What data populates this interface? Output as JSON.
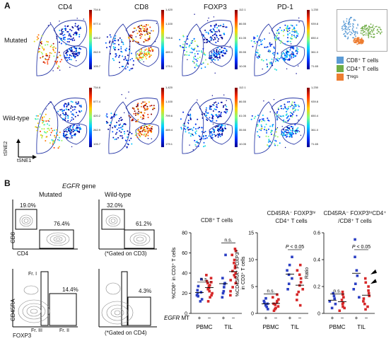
{
  "panelA": {
    "letter": "A",
    "markers": [
      "CD4",
      "CD8",
      "FOXP3",
      "PD-1"
    ],
    "rows": [
      "Mutated",
      "Wild-type"
    ],
    "colorbars": [
      {
        "ticks": [
          "734.6",
          "577.4",
          "420.2",
          "262.9",
          "105.7"
        ]
      },
      {
        "ticks": [
          "1,420",
          "1,100",
          "799.6",
          "489.4",
          "179.1"
        ]
      },
      {
        "ticks": [
          "112.1",
          "86.55",
          "61.05",
          "35.55",
          "10.05"
        ]
      },
      {
        "ticks": [
          "1,230",
          "939.8",
          "650.4",
          "361.0",
          "71.65"
        ]
      }
    ],
    "legend": [
      {
        "label": "CD8⁺ T cells",
        "color": "#5b9bd5"
      },
      {
        "label": "CD4⁺ T cells",
        "color": "#70ad47"
      },
      {
        "label": "T",
        "sub": "regs",
        "color": "#ed7d31"
      }
    ],
    "axis_y": "tSNE2",
    "axis_x": "tSNE1"
  },
  "panelB": {
    "letter": "B",
    "gene_title": "EGFR",
    "gene_suffix": " gene",
    "col_mut": "Mutated",
    "col_wt": "Wild-type",
    "flow_top": {
      "y_axis": "CD8",
      "x_axis": "CD4",
      "mut_cd8": "19.0%",
      "mut_cd4": "76.4%",
      "wt_cd8": "32.0%",
      "wt_cd4": "61.2%",
      "gate_note": "(*Gated on CD3)"
    },
    "flow_bottom": {
      "y_axis": "CD45RA",
      "x_axis": "FOXP3",
      "fr1": "Fr. I",
      "fr2": "Fr. II",
      "fr3": "Fr. III",
      "mut_pct": "14.4%",
      "wt_pct": "4.3%",
      "gate_note": "(*Gated on CD4)"
    },
    "egfr_label": "EGFR",
    "mt_label": " MT",
    "groups": [
      "PBMC",
      "TIL"
    ],
    "plus": "+",
    "minus": "−",
    "ns": "n.s.",
    "p_text": "P < 0.05"
  },
  "chart_data": [
    {
      "type": "scatter",
      "title": "CD8⁺ T cells",
      "ylabel": "%CD8⁺ in CD3⁺ T cells",
      "ylim": [
        0,
        80
      ],
      "yticks": [
        "0",
        "20",
        "40",
        "60",
        "80"
      ],
      "categories": [
        "PBMC +",
        "PBMC −",
        "TIL +",
        "TIL −"
      ],
      "series": [
        {
          "values": [
            [
              12,
              14,
              17,
              18,
              20,
              21,
              23,
              27,
              34
            ],
            [
              12,
              16,
              18,
              20,
              22,
              24,
              25,
              27,
              28,
              30,
              31,
              32,
              35,
              38
            ],
            [
              16,
              20,
              22,
              26,
              29,
              30,
              35,
              58
            ],
            [
              18,
              22,
              26,
              30,
              33,
              36,
              38,
              40,
              42,
              45,
              47,
              50,
              53,
              58,
              62,
              64
            ]
          ]
        }
      ],
      "annotations": [
        "n.s.",
        "n.s."
      ]
    },
    {
      "type": "scatter",
      "title": "CD45RA⁻ FOXP3ʰⁱ CD4⁺ T cells",
      "ylabel": "%CD45RA⁻ FOXP3ʰⁱ in CD3⁺ T cells",
      "ylim": [
        0,
        15
      ],
      "yticks": [
        "0",
        "5",
        "10",
        "15"
      ],
      "categories": [
        "PBMC +",
        "PBMC −",
        "TIL +",
        "TIL −"
      ],
      "series": [
        {
          "values": [
            [
              0.8,
              1.2,
              1.5,
              1.8,
              2.0,
              2.3,
              2.8
            ],
            [
              0.5,
              0.8,
              1.0,
              1.3,
              1.6,
              1.8,
              2.0,
              2.3,
              2.6,
              3.0,
              3.5
            ],
            [
              4.5,
              5.5,
              6.5,
              7.2,
              8.0,
              9.0,
              10.5
            ],
            [
              1.5,
              2.5,
              3.5,
              4.0,
              4.5,
              5.2,
              5.8,
              6.5,
              7.2,
              8.0,
              9.0
            ]
          ]
        }
      ],
      "annotations": [
        "n.s.",
        "P < 0.05"
      ]
    },
    {
      "type": "scatter",
      "title": "CD45RA⁻ FOXP3ʰⁱCD4⁺ /CD8⁺ T cells",
      "ylabel": "Ratio",
      "ylim": [
        0,
        0.6
      ],
      "yticks": [
        "0",
        "0.2",
        "0.4",
        "0.6"
      ],
      "categories": [
        "PBMC +",
        "PBMC −",
        "TIL +",
        "TIL −"
      ],
      "series": [
        {
          "values": [
            [
              0.04,
              0.07,
              0.09,
              0.11,
              0.13,
              0.15
            ],
            [
              0.02,
              0.04,
              0.05,
              0.07,
              0.08,
              0.1,
              0.12,
              0.14,
              0.16
            ],
            [
              0.12,
              0.18,
              0.22,
              0.28,
              0.32,
              0.42,
              0.55
            ],
            [
              0.03,
              0.05,
              0.07,
              0.09,
              0.11,
              0.13,
              0.15,
              0.17,
              0.2,
              0.23,
              0.26
            ]
          ]
        }
      ],
      "annotations": [
        "n.s.",
        "P < 0.05"
      ]
    }
  ]
}
